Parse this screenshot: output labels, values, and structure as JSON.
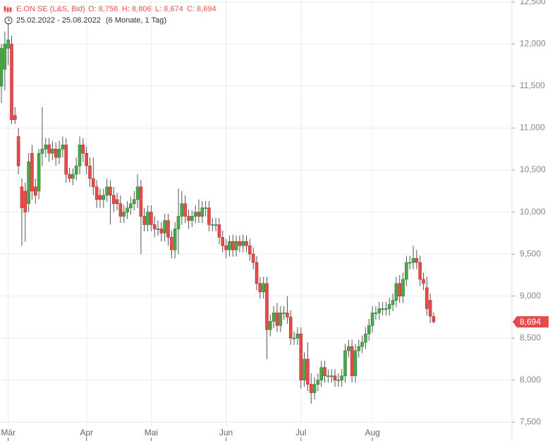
{
  "chart_data": {
    "type": "candlestick",
    "title": "E.ON SE (L&S, Bid)",
    "ohlc_labels": [
      "O: 8,758",
      "H: 8,806",
      "L: 8,674",
      "C: 8,694"
    ],
    "period": "25.02.2022 - 25.08.2022",
    "period_note": "(6 Monate, 1 Tag)",
    "up_color": "#4aa84a",
    "down_color": "#e54b4b",
    "grid": true,
    "ylim": [
      7275,
      12525
    ],
    "yticks": [
      {
        "value": 7500,
        "label": "7,500"
      },
      {
        "value": 8000,
        "label": "8,000"
      },
      {
        "value": 8500,
        "label": "8,500"
      },
      {
        "value": 9000,
        "label": "9,000"
      },
      {
        "value": 9500,
        "label": "9,500"
      },
      {
        "value": 10000,
        "label": "10,000"
      },
      {
        "value": 10500,
        "label": "10,500"
      },
      {
        "value": 11000,
        "label": "11,000"
      },
      {
        "value": 11500,
        "label": "11,500"
      },
      {
        "value": 12000,
        "label": "12,000"
      },
      {
        "value": 12500,
        "label": "12,500"
      }
    ],
    "last_value": {
      "value": 8694,
      "label": "8,694"
    },
    "categories": [
      null,
      null,
      "Mär",
      null,
      null,
      null,
      null,
      null,
      null,
      null,
      null,
      null,
      null,
      null,
      null,
      null,
      null,
      null,
      null,
      null,
      null,
      null,
      null,
      null,
      null,
      "Apr",
      null,
      null,
      null,
      null,
      null,
      null,
      null,
      null,
      null,
      null,
      null,
      null,
      null,
      null,
      null,
      null,
      null,
      null,
      "Mai",
      null,
      null,
      null,
      null,
      null,
      null,
      null,
      null,
      null,
      null,
      null,
      null,
      null,
      null,
      null,
      null,
      null,
      null,
      null,
      null,
      null,
      "Jun",
      null,
      null,
      null,
      null,
      null,
      null,
      null,
      null,
      null,
      null,
      null,
      null,
      null,
      null,
      null,
      null,
      null,
      null,
      null,
      null,
      null,
      "Jul",
      null,
      null,
      null,
      null,
      null,
      null,
      null,
      null,
      null,
      null,
      null,
      null,
      null,
      null,
      null,
      null,
      null,
      null,
      null,
      null,
      "Aug",
      null,
      null,
      null,
      null,
      null,
      null,
      null,
      null,
      null,
      null,
      null,
      null,
      null,
      null,
      null,
      null,
      null,
      null
    ],
    "open": [
      11500,
      11700,
      11950,
      12000,
      11150,
      10900,
      10300,
      10250,
      10100,
      10700,
      10300,
      10250,
      10700,
      10750,
      10800,
      10700,
      10750,
      10650,
      10750,
      10800,
      10450,
      10400,
      10450,
      10550,
      10800,
      10700,
      10550,
      10400,
      10300,
      10200,
      10150,
      10200,
      10300,
      10200,
      10150,
      10100,
      9950,
      10000,
      10050,
      10100,
      10150,
      10300,
      9950,
      9850,
      10000,
      9850,
      9800,
      9800,
      9750,
      9900,
      9700,
      9550,
      9800,
      9950,
      10100,
      9950,
      9900,
      9950,
      10000,
      9950,
      10050,
      10050,
      9850,
      9850,
      9850,
      9700,
      9600,
      9550,
      9650,
      9550,
      9650,
      9600,
      9650,
      9600,
      9500,
      9400,
      9150,
      9050,
      9150,
      8600,
      8700,
      8800,
      8650,
      8800,
      8800,
      8750,
      8500,
      8500,
      8550,
      8000,
      8250,
      7950,
      7850,
      7950,
      8000,
      8150,
      8050,
      8050,
      8050,
      8000,
      8000,
      8050,
      8350,
      8400,
      8050,
      8350,
      8400,
      8450,
      8550,
      8650,
      8800,
      8800,
      8850,
      8850,
      8850,
      8900,
      8950,
      9150,
      9000,
      9200,
      9400,
      9400,
      9450,
      9400,
      9200,
      9100,
      8950,
      8758
    ],
    "high": [
      12000,
      12150,
      12250,
      12100,
      11250,
      11000,
      10400,
      10350,
      10700,
      10800,
      10400,
      10750,
      11250,
      10880,
      10880,
      10850,
      10830,
      10850,
      10900,
      10880,
      10530,
      10520,
      10650,
      10900,
      10880,
      10780,
      10650,
      10650,
      10380,
      10280,
      10280,
      10400,
      10380,
      10300,
      10230,
      10200,
      10080,
      10130,
      10180,
      10250,
      10450,
      10380,
      10050,
      10080,
      10080,
      9950,
      9900,
      9880,
      9980,
      9980,
      9780,
      9880,
      10280,
      10250,
      10200,
      10030,
      10020,
      10080,
      10150,
      10130,
      10130,
      10130,
      9930,
      9930,
      9930,
      9780,
      9680,
      9720,
      9730,
      9720,
      9720,
      9730,
      9720,
      9680,
      9580,
      9480,
      9230,
      9230,
      9230,
      8780,
      8880,
      8920,
      8880,
      8880,
      9000,
      8830,
      8580,
      8630,
      8630,
      8330,
      8450,
      8080,
      8030,
      8080,
      8230,
      8230,
      8130,
      8130,
      8130,
      8080,
      8130,
      8430,
      8480,
      8480,
      8430,
      8480,
      8530,
      8630,
      8730,
      8880,
      8880,
      8930,
      8930,
      8930,
      8980,
      9030,
      9230,
      9250,
      9280,
      9480,
      9480,
      9600,
      9550,
      9480,
      9280,
      9230,
      9030,
      8806
    ],
    "low": [
      11300,
      11450,
      11750,
      11050,
      11050,
      10450,
      9600,
      9650,
      10000,
      10150,
      10100,
      10150,
      10550,
      10650,
      10600,
      10620,
      10550,
      10570,
      10650,
      10350,
      10350,
      10320,
      10380,
      10450,
      10600,
      10450,
      10300,
      10200,
      10050,
      10050,
      10050,
      10120,
      9850,
      10000,
      10020,
      9870,
      9870,
      9920,
      9970,
      10020,
      10050,
      9500,
      9770,
      9770,
      9770,
      9700,
      9720,
      9650,
      9650,
      9600,
      9450,
      9450,
      9500,
      9850,
      9870,
      9800,
      9820,
      9870,
      9870,
      9870,
      9950,
      9770,
      9770,
      9770,
      9620,
      9520,
      9450,
      9470,
      9470,
      9470,
      9520,
      9520,
      9520,
      9420,
      9320,
      9070,
      8970,
      8970,
      8250,
      8520,
      8620,
      8570,
      8570,
      8720,
      8670,
      8420,
      8420,
      8420,
      7900,
      7920,
      7870,
      7720,
      7770,
      7870,
      7920,
      7970,
      7970,
      7970,
      7920,
      7920,
      7920,
      7970,
      8270,
      7970,
      7970,
      8270,
      8320,
      8370,
      8470,
      8570,
      8720,
      8720,
      8770,
      8770,
      8770,
      8820,
      8870,
      8920,
      8920,
      9120,
      9320,
      9320,
      9320,
      9120,
      9070,
      8770,
      8680,
      8674
    ],
    "close": [
      11950,
      12000,
      12050,
      11100,
      11100,
      10550,
      10050,
      10000,
      10600,
      10250,
      10200,
      10700,
      10750,
      10800,
      10700,
      10750,
      10650,
      10750,
      10800,
      10450,
      10400,
      10450,
      10550,
      10800,
      10700,
      10550,
      10400,
      10300,
      10150,
      10150,
      10200,
      10300,
      10200,
      10100,
      10100,
      9950,
      10000,
      10050,
      10100,
      10150,
      10300,
      9950,
      9850,
      10000,
      9850,
      9800,
      9800,
      9750,
      9900,
      9700,
      9550,
      9800,
      9950,
      10100,
      9950,
      9900,
      9950,
      10000,
      9950,
      10050,
      10050,
      9850,
      9850,
      9850,
      9700,
      9600,
      9550,
      9650,
      9550,
      9650,
      9600,
      9650,
      9600,
      9500,
      9400,
      9150,
      9050,
      9150,
      8600,
      8700,
      8800,
      8650,
      8800,
      8800,
      8750,
      8500,
      8500,
      8550,
      8000,
      8250,
      7950,
      7850,
      7950,
      8000,
      8150,
      8050,
      8050,
      8050,
      8000,
      8000,
      8050,
      8350,
      8400,
      8050,
      8350,
      8400,
      8450,
      8550,
      8650,
      8800,
      8800,
      8850,
      8850,
      8850,
      8900,
      8950,
      9150,
      9000,
      9200,
      9400,
      9400,
      9450,
      9400,
      9200,
      9150,
      8850,
      8760,
      8694
    ]
  }
}
